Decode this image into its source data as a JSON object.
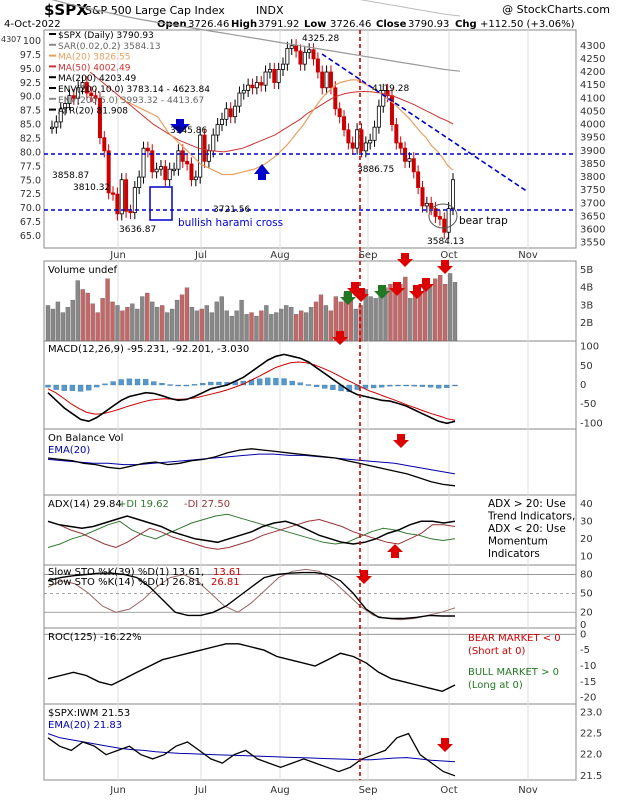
{
  "header": {
    "symbol": "$SPX",
    "name": "S&P 500 Large Cap Index",
    "exchange": "INDX",
    "source": "@ StockCharts.com",
    "date": "4-Oct-2022",
    "open_label": "Open",
    "open": "3726.46",
    "high_label": "High",
    "high": "3791.92",
    "low_label": "Low",
    "low": "3726.46",
    "close_label": "Close",
    "close": "3790.93",
    "chg_label": "Chg",
    "chg": "+112.50 (+3.06%)"
  },
  "colors": {
    "up": "#000000",
    "down": "#cc0000",
    "blue": "#0000cc",
    "ma20": "#e8a060",
    "ma50": "#cc3333",
    "ma200": "#999999",
    "env": "#bbbbbb",
    "volUp": "#888888",
    "volDown": "#c66666",
    "macdHist": "#5599cc",
    "green": "#337733",
    "redArrow": "#dd0000",
    "greenArrow": "#227722"
  },
  "x_labels": [
    "Jun",
    "Jul",
    "Aug",
    "Sep",
    "Oct",
    "Nov"
  ],
  "price_panel": {
    "legend": [
      {
        "text": "$SPX (Daily) 3790.93",
        "color": "#000000"
      },
      {
        "text": "SAR(0.02,0.2) 3584.13",
        "color": "#666666"
      },
      {
        "text": "MA(20) 3826.55",
        "color": "#e8a060"
      },
      {
        "text": "MA(50) 4002.49",
        "color": "#cc3333"
      },
      {
        "text": "MA(200) 4203.49",
        "color": "#000000"
      },
      {
        "text": "ENV(200,10.0) 3783.14 - 4623.84",
        "color": "#000000"
      },
      {
        "text": "ENV(200,5.0) 3993.32 - 4413.67",
        "color": "#666666"
      },
      {
        "text": "ATR(20) 81.908",
        "color": "#000000"
      }
    ],
    "corner_label": "4307",
    "right_ticks": [
      3550,
      3600,
      3650,
      3700,
      3750,
      3800,
      3850,
      3900,
      3950,
      4000,
      4050,
      4100,
      4150,
      4200,
      4250,
      4300
    ],
    "left_ticks": [
      "65.0",
      "67.5",
      "70.0",
      "72.5",
      "75.0",
      "77.5",
      "80.0",
      "82.5",
      "85.0",
      "87.5",
      "90.0",
      "92.5",
      "95.0",
      "97.5",
      "100"
    ],
    "annotations": {
      "peak": "4325.28",
      "mid_high": "4119.28",
      "sep_low": "3886.75",
      "low_oct": "3584.13",
      "jun_low": "3636.87",
      "jun_high": "3858.87",
      "jun_mid": "3810.32",
      "jul_low": "3721.56",
      "jun_peak": "3945.86",
      "harami": "bullish harami cross",
      "trap": "bear trap"
    }
  },
  "volume_panel": {
    "title": "Volume undef",
    "ticks": [
      "2B",
      "3B",
      "4B",
      "5B"
    ]
  },
  "macd_panel": {
    "title": "MACD(12,26,9) -95.231, -92.201, -3.030",
    "ticks": [
      "-100",
      "-50",
      "0",
      "50",
      "100"
    ]
  },
  "obv_panel": {
    "title": "On Balance Vol",
    "ema": "EMA(20)"
  },
  "adx_panel": {
    "title_adx": "ADX(14) 29.84",
    "title_pdi": "+DI 19.62",
    "title_mdi": "-DI 27.50",
    "note": [
      "ADX > 20: Use",
      "Trend Indicators,",
      "ADX < 20: Use",
      "Momentum",
      "Indicators"
    ],
    "ticks": [
      "10",
      "20",
      "30",
      "40"
    ]
  },
  "sto_panel": {
    "line1": "Slow STO %K(39) %D(1) 13.61,",
    "line1_val": "13.61",
    "line2": "Slow STO %K(14) %D(1) 26.81,",
    "line2_val": "26.81",
    "ticks": [
      "0",
      "20",
      "50",
      "80"
    ]
  },
  "roc_panel": {
    "title": "ROC(125) -16.22%",
    "bear": [
      "BEAR MARKET < 0",
      "(Short at 0)"
    ],
    "bull": [
      "BULL MARKET > 0",
      "(Long at 0)"
    ],
    "ticks": [
      "-20",
      "-15",
      "-10",
      "-5",
      "0"
    ]
  },
  "ratio_panel": {
    "title": "$SPX:IWM 21.53",
    "ema": "EMA(20) 21.83",
    "ticks": [
      "21.5",
      "22.0",
      "22.5",
      "23.0"
    ]
  },
  "chart_data": {
    "type": "line",
    "title": "$SPX S&P 500 Large Cap Index INDX",
    "x_label_months": [
      "Jun",
      "Jul",
      "Aug",
      "Sep",
      "Oct",
      "Nov"
    ],
    "price_close": [
      3990,
      4010,
      4060,
      4080,
      4110,
      4100,
      4140,
      4160,
      4120,
      4110,
      4100,
      3950,
      3900,
      3740,
      3735,
      3660,
      3790,
      3670,
      3665,
      3760,
      3800,
      3910,
      3900,
      3820,
      3830,
      3840,
      3790,
      3830,
      3830,
      3900,
      3860,
      3850,
      3790,
      3800,
      3960,
      3860,
      3900,
      3960,
      4000,
      4020,
      4060,
      4030,
      4070,
      4120,
      4130,
      4150,
      4140,
      4160,
      4150,
      4200,
      4210,
      4160,
      4210,
      4230,
      4290,
      4300,
      4280,
      4230,
      4275,
      4285,
      4250,
      4200,
      4140,
      4200,
      4140,
      4060,
      4030,
      3980,
      3930,
      3910,
      3980,
      3900,
      3930,
      3940,
      3990,
      4070,
      4130,
      4110,
      4000,
      3930,
      3910,
      3860,
      3870,
      3820,
      3760,
      3690,
      3700,
      3680,
      3650,
      3640,
      3590,
      3680,
      3790
    ],
    "price_ylim": [
      3530,
      4360
    ],
    "sma20": [
      4100,
      4090,
      4080,
      4070,
      4060,
      4050,
      4040,
      4030,
      4000,
      3970,
      3950,
      3930,
      3910,
      3890,
      3870,
      3850,
      3840,
      3830,
      3820,
      3810,
      3810,
      3810,
      3815,
      3820,
      3825,
      3830,
      3840,
      3850,
      3865,
      3880,
      3900,
      3920,
      3945,
      3970,
      3995,
      4025,
      4055,
      4085,
      4110,
      4130,
      4150,
      4160,
      4165,
      4170,
      4170,
      4160,
      4150,
      4140,
      4125,
      4110,
      4095,
      4080,
      4060,
      4040,
      4020,
      3995,
      3970,
      3950,
      3920,
      3900,
      3875,
      3845,
      3826
    ],
    "sma50": [
      4200,
      4180,
      4160,
      4140,
      4120,
      4100,
      4080,
      4060,
      4040,
      4020,
      4000,
      3985,
      3970,
      3955,
      3940,
      3930,
      3920,
      3910,
      3905,
      3900,
      3898,
      3896,
      3900,
      3905,
      3910,
      3920,
      3930,
      3940,
      3950,
      3960,
      3975,
      3990,
      4005,
      4020,
      4040,
      4055,
      4070,
      4085,
      4100,
      4110,
      4118,
      4122,
      4125,
      4126,
      4125,
      4122,
      4118,
      4112,
      4105,
      4095,
      4085,
      4075,
      4062,
      4050,
      4038,
      4025,
      4015,
      4002
    ],
    "sma200": [
      4480,
      4470,
      4460,
      4452,
      4444,
      4436,
      4428,
      4420,
      4412,
      4405,
      4398,
      4392,
      4386,
      4380,
      4374,
      4368,
      4362,
      4356,
      4350,
      4344,
      4338,
      4332,
      4326,
      4320,
      4314,
      4308,
      4302,
      4296,
      4290,
      4284,
      4278,
      4272,
      4266,
      4260,
      4254,
      4248,
      4242,
      4236,
      4230,
      4224,
      4218,
      4212,
      4207,
      4203
    ],
    "macd": [
      -20,
      -40,
      -60,
      -75,
      -90,
      -95,
      -85,
      -70,
      -55,
      -40,
      -30,
      -25,
      -20,
      -22,
      -28,
      -35,
      -40,
      -38,
      -30,
      -20,
      -10,
      -5,
      0,
      10,
      20,
      35,
      50,
      65,
      75,
      80,
      75,
      70,
      60,
      45,
      30,
      15,
      0,
      -15,
      -25,
      -30,
      -35,
      -40,
      -42,
      -48,
      -55,
      -65,
      -75,
      -85,
      -95,
      -100,
      -95
    ],
    "macd_signal": [
      -10,
      -20,
      -35,
      -50,
      -62,
      -72,
      -76,
      -75,
      -70,
      -64,
      -57,
      -51,
      -45,
      -40,
      -37,
      -36,
      -37,
      -37,
      -36,
      -33,
      -28,
      -23,
      -18,
      -12,
      -5,
      3,
      13,
      23,
      34,
      45,
      52,
      58,
      60,
      58,
      53,
      45,
      36,
      26,
      15,
      5,
      -5,
      -15,
      -22,
      -30,
      -37,
      -45,
      -53,
      -60,
      -68,
      -75,
      -81,
      -88,
      -92
    ],
    "obv": [
      48,
      47,
      46,
      44,
      43,
      41,
      40,
      42,
      44,
      45,
      43,
      44,
      46,
      47,
      49,
      52,
      54,
      55,
      54,
      53,
      52,
      51,
      50,
      49,
      48,
      46,
      44,
      42,
      40,
      38,
      36,
      33,
      30,
      28,
      27
    ],
    "obv_ema": [
      47,
      46,
      45,
      44,
      44,
      43,
      43,
      44,
      45,
      46,
      47,
      48,
      49,
      50,
      51,
      51,
      50,
      50,
      49,
      48,
      47,
      46,
      45,
      44,
      42,
      40,
      38,
      36
    ],
    "adx": [
      30,
      28,
      27,
      26,
      27,
      29,
      31,
      33,
      31,
      29,
      27,
      24,
      22,
      20,
      19,
      18,
      20,
      22,
      24,
      27,
      29,
      30,
      28,
      25,
      22,
      20,
      18,
      17,
      18,
      20,
      23,
      25,
      28,
      30,
      30,
      29,
      30
    ],
    "plus_di": [
      15,
      17,
      20,
      22,
      25,
      28,
      30,
      25,
      22,
      20,
      23,
      26,
      29,
      31,
      33,
      34,
      32,
      30,
      28,
      26,
      24,
      22,
      20,
      18,
      17,
      18,
      21,
      24,
      26,
      25,
      23,
      22,
      20,
      19,
      20
    ],
    "minus_di": [
      30,
      28,
      25,
      23,
      20,
      17,
      15,
      18,
      22,
      26,
      24,
      21,
      19,
      17,
      15,
      14,
      15,
      17,
      19,
      22,
      24,
      26,
      28,
      30,
      31,
      29,
      27,
      24,
      22,
      20,
      18,
      17,
      20,
      23,
      28,
      28,
      27
    ],
    "sto_k39": [
      70,
      75,
      78,
      80,
      82,
      82,
      80,
      75,
      60,
      40,
      20,
      15,
      15,
      20,
      30,
      45,
      60,
      75,
      80,
      82,
      83,
      83,
      80,
      70,
      50,
      25,
      12,
      10,
      10,
      12,
      15,
      14,
      14
    ],
    "sto_k14": [
      60,
      70,
      65,
      50,
      30,
      20,
      25,
      40,
      60,
      75,
      80,
      70,
      50,
      30,
      20,
      35,
      55,
      75,
      85,
      88,
      85,
      70,
      50,
      30,
      15,
      10,
      8,
      10,
      15,
      20,
      27
    ],
    "roc125": [
      -14,
      -13,
      -12,
      -13,
      -15,
      -16,
      -14,
      -12,
      -10,
      -8,
      -7,
      -6,
      -5,
      -4,
      -3,
      -3,
      -4,
      -5,
      -7,
      -8,
      -9,
      -10,
      -8,
      -6,
      -7,
      -9,
      -12,
      -14,
      -15,
      -16,
      -17,
      -18,
      -16
    ],
    "ratio": [
      22.4,
      22.2,
      22.1,
      22.3,
      22.2,
      22.0,
      22.1,
      22.2,
      22.0,
      21.9,
      22.0,
      22.2,
      22.3,
      22.1,
      21.9,
      21.8,
      22.0,
      22.1,
      21.9,
      21.8,
      21.7,
      21.8,
      21.9,
      21.8,
      21.7,
      21.6,
      21.7,
      21.9,
      22.0,
      22.1,
      22.4,
      22.5,
      22.0,
      21.8,
      21.6,
      21.5
    ],
    "ratio_ema": [
      22.5,
      22.4,
      22.35,
      22.3,
      22.25,
      22.2,
      22.15,
      22.12,
      22.1,
      22.07,
      22.05,
      22.03,
      22.02,
      22.01,
      22.0,
      21.99,
      21.98,
      21.97,
      21.96,
      21.95,
      21.94,
      21.93,
      21.92,
      21.91,
      21.9,
      21.89,
      21.88,
      21.88,
      21.9,
      21.92,
      21.93,
      21.9,
      21.87,
      21.85,
      21.83
    ],
    "volume_b": [
      3.0,
      2.8,
      3.2,
      2.6,
      2.9,
      3.3,
      4.4,
      3.9,
      3.7,
      3.1,
      2.6,
      3.4,
      4.5,
      3.2,
      3.0,
      2.7,
      2.9,
      3.1,
      2.8,
      3.5,
      3.7,
      3.2,
      2.9,
      3.0,
      2.6,
      2.8,
      3.3,
      3.6,
      4.0,
      2.9,
      2.7,
      2.8,
      3.0,
      2.6,
      3.2,
      3.5,
      2.7,
      2.4,
      2.7,
      3.3,
      2.5,
      2.6,
      2.4,
      2.7,
      3.0,
      2.5,
      2.6,
      2.8,
      3.0,
      2.9,
      2.5,
      2.7,
      2.6,
      2.9,
      3.2,
      3.6,
      3.0,
      2.7,
      3.5,
      3.2,
      3.7,
      3.4,
      2.8,
      3.0,
      3.9,
      3.5,
      3.4,
      3.8,
      4.0,
      4.2,
      3.9,
      4.2,
      4.6,
      3.4,
      3.6,
      3.8,
      4.0,
      4.2,
      4.5,
      4.7,
      4.2,
      4.8,
      4.3
    ],
    "volume_ylim": [
      1.0,
      5.5
    ],
    "macd_ylim": [
      -115,
      115
    ]
  }
}
